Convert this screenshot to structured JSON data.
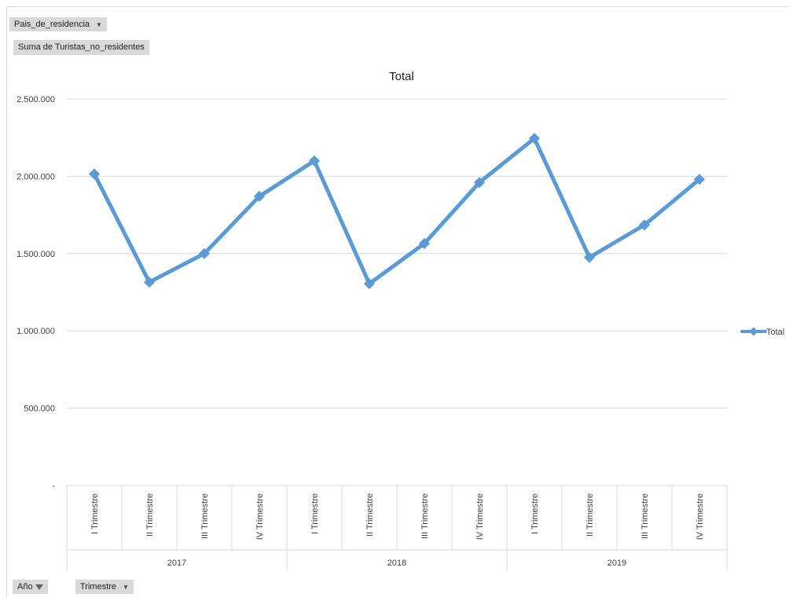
{
  "pivot": {
    "filter_field": "Pais_de_residencia",
    "value_field": "Suma de Turistas_no_residentes",
    "row_field_1": "Año",
    "row_field_2": "Trimestre",
    "dropdown_glyph": "▼"
  },
  "chart_data": {
    "type": "line",
    "title": "Total",
    "years": [
      "2017",
      "2018",
      "2019"
    ],
    "quarters": [
      "I Trimestre",
      "II Trimestre",
      "III Trimestre",
      "IV Trimestre"
    ],
    "categories": [
      "I Trimestre",
      "II Trimestre",
      "III Trimestre",
      "IV Trimestre",
      "I Trimestre",
      "II Trimestre",
      "III Trimestre",
      "IV Trimestre",
      "I Trimestre",
      "II Trimestre",
      "III Trimestre",
      "IV Trimestre"
    ],
    "series": [
      {
        "name": "Total",
        "color": "#5b9bd5",
        "values": [
          2015000,
          1315000,
          1500000,
          1870000,
          2100000,
          1305000,
          1565000,
          1960000,
          2245000,
          1475000,
          1685000,
          1980000
        ]
      }
    ],
    "ylim": [
      0,
      2500000
    ],
    "y_ticks": [
      0,
      500000,
      1000000,
      1500000,
      2000000,
      2500000
    ],
    "y_tick_labels": [
      "-",
      "500.000",
      "1.000.000",
      "1.500.000",
      "2.000.000",
      "2.500.000"
    ],
    "grid": true,
    "legend": {
      "position": "right",
      "label": "Total"
    }
  }
}
